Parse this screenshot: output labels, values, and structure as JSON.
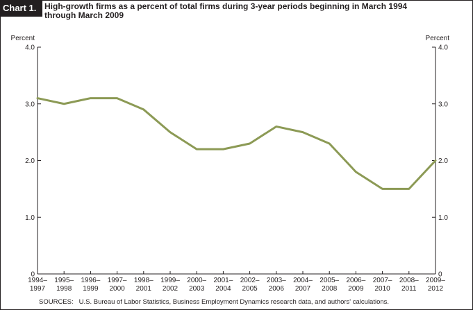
{
  "header": {
    "chart_number": "Chart 1.",
    "title_line1": "High-growth firms as a percent of total firms during 3-year periods beginning in March 1994",
    "title_line2": "through March 2009"
  },
  "sources": {
    "label": "SOURCES:",
    "text": "U.S. Bureau of Labor Statistics, Business Employment Dynamics research data, and authors' calculations."
  },
  "chart_data": {
    "type": "line",
    "title": "High-growth firms as a percent of total firms during 3-year periods beginning in March 1994 through March 2009",
    "ylabel_left": "Percent",
    "ylabel_right": "Percent",
    "ylim": [
      0,
      4.0
    ],
    "yticks": [
      "0",
      "1.0",
      "2.0",
      "3.0",
      "4.0"
    ],
    "grid": false,
    "legend": "none",
    "line_color": "#8c9a55",
    "categories": [
      [
        "1994–",
        "1997"
      ],
      [
        "1995–",
        "1998"
      ],
      [
        "1996–",
        "1999"
      ],
      [
        "1997–",
        "2000"
      ],
      [
        "1998–",
        "2001"
      ],
      [
        "1999–",
        "2002"
      ],
      [
        "2000–",
        "2003"
      ],
      [
        "2001–",
        "2004"
      ],
      [
        "2002–",
        "2005"
      ],
      [
        "2003–",
        "2006"
      ],
      [
        "2004–",
        "2007"
      ],
      [
        "2005–",
        "2008"
      ],
      [
        "2006–",
        "2009"
      ],
      [
        "2007–",
        "2010"
      ],
      [
        "2008–",
        "2011"
      ],
      [
        "2009–",
        "2012"
      ]
    ],
    "series": [
      {
        "values": [
          3.1,
          3.0,
          3.1,
          3.1,
          2.9,
          2.5,
          2.2,
          2.2,
          2.3,
          2.6,
          2.5,
          2.3,
          1.8,
          1.5,
          1.5,
          2.0
        ]
      }
    ]
  }
}
